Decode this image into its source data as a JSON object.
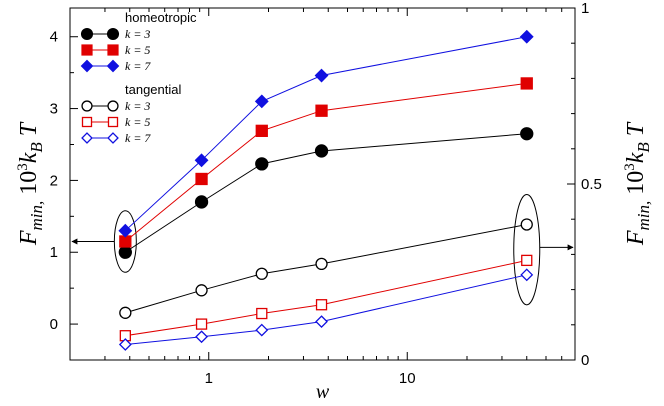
{
  "chart_data": {
    "type": "line",
    "xscale": "log",
    "x": [
      0.38,
      0.92,
      1.85,
      3.7,
      40
    ],
    "xlim": [
      0.2,
      70
    ],
    "ylim": [
      -0.5,
      4.4
    ],
    "ylim_right": [
      0,
      1
    ],
    "xlabel": "w",
    "ylabel_left": "F_min, 10^3 k_B T",
    "ylabel_right": "F_min, 10^3 k_B T",
    "x_ticks": [
      {
        "value": 1,
        "label": "1"
      },
      {
        "value": 10,
        "label": "10"
      }
    ],
    "y_ticks_left": [
      {
        "value": 0,
        "label": "0"
      },
      {
        "value": 1,
        "label": "1"
      },
      {
        "value": 2,
        "label": "2"
      },
      {
        "value": 3,
        "label": "3"
      },
      {
        "value": 4,
        "label": "4"
      }
    ],
    "y_ticks_right": [
      {
        "value": 0,
        "label": "0"
      },
      {
        "value": 0.5,
        "label": "0.5"
      },
      {
        "value": 1,
        "label": "1"
      }
    ],
    "legend_groups": [
      {
        "title": "homeotropic",
        "entries": [
          "k = 3",
          "k = 5",
          "k = 7"
        ]
      },
      {
        "title": "tangential",
        "entries": [
          "k = 3",
          "k = 5",
          "k = 7"
        ]
      }
    ],
    "series": [
      {
        "name": "homeotropic k = 3",
        "group": "homeotropic",
        "axis": "left",
        "marker": "circle",
        "filled": true,
        "color": "#000000",
        "values": [
          1.0,
          1.7,
          2.23,
          2.41,
          2.65
        ]
      },
      {
        "name": "homeotropic k = 5",
        "group": "homeotropic",
        "axis": "left",
        "marker": "square",
        "filled": true,
        "color": "#e00000",
        "values": [
          1.15,
          2.02,
          2.69,
          2.97,
          3.35
        ]
      },
      {
        "name": "homeotropic k = 7",
        "group": "homeotropic",
        "axis": "left",
        "marker": "diamond",
        "filled": true,
        "color": "#1010e0",
        "values": [
          1.3,
          2.28,
          3.1,
          3.46,
          4.0
        ]
      },
      {
        "name": "tangential k = 3",
        "group": "tangential",
        "axis": "right",
        "marker": "circle",
        "filled": false,
        "color": "#000000",
        "values": [
          0.134,
          0.198,
          0.245,
          0.273,
          0.385
        ]
      },
      {
        "name": "tangential k = 5",
        "group": "tangential",
        "axis": "right",
        "marker": "square",
        "filled": false,
        "color": "#e00000",
        "values": [
          0.069,
          0.102,
          0.132,
          0.157,
          0.283
        ]
      },
      {
        "name": "tangential k = 7",
        "group": "tangential",
        "axis": "right",
        "marker": "diamond",
        "filled": false,
        "color": "#1010e0",
        "values": [
          0.044,
          0.066,
          0.085,
          0.109,
          0.242
        ]
      }
    ],
    "annotations": [
      {
        "type": "ellipse-arrow",
        "target": "homeotropic points at w = 0.38",
        "points_to": "left axis"
      },
      {
        "type": "ellipse-arrow",
        "target": "tangential points at w = 40",
        "points_to": "right axis"
      }
    ]
  }
}
